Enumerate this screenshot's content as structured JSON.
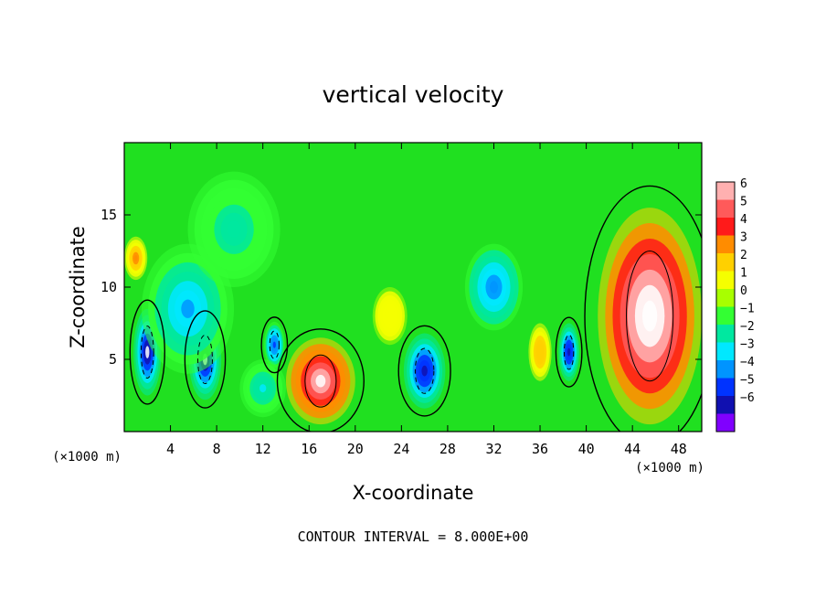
{
  "chart_data": {
    "type": "heatmap",
    "title": "vertical velocity",
    "xlabel": "X-coordinate",
    "ylabel": "Z-coordinate",
    "x_unit_left": "(×1000 m)",
    "x_unit_right": "(×1000 m)",
    "xlim": [
      0,
      50
    ],
    "ylim": [
      0,
      20
    ],
    "x_ticks": [
      4,
      8,
      12,
      16,
      20,
      24,
      28,
      32,
      36,
      40,
      44,
      48
    ],
    "y_ticks": [
      5,
      10,
      15
    ],
    "footnote": "CONTOUR INTERVAL = 8.000E+00",
    "colorbar": {
      "labels": [
        "6",
        "5",
        "4",
        "3",
        "2",
        "1",
        "0",
        "−1",
        "−2",
        "−3",
        "−4",
        "−5",
        "−6"
      ],
      "colors": [
        "#ffb0b0",
        "#ff5a5a",
        "#ff1a1a",
        "#ff8c00",
        "#ffd000",
        "#f5ff00",
        "#a8ff00",
        "#33ff33",
        "#00e8a0",
        "#00e8ff",
        "#0094ff",
        "#0033ff",
        "#1010b0",
        "#8000ff"
      ]
    },
    "background_color": "#20e020",
    "features": [
      {
        "name": "updraft",
        "x": 2.0,
        "z": 5.5,
        "rx": 1.2,
        "rz": 3.0,
        "w": -6.5
      },
      {
        "name": "updraft",
        "x": 7.0,
        "z": 5.0,
        "rx": 1.4,
        "rz": 2.8,
        "w": -6.5
      },
      {
        "name": "updraft",
        "x": 5.5,
        "z": 8.5,
        "rx": 4.0,
        "rz": 4.5,
        "w": -3.5
      },
      {
        "name": "updraft",
        "x": 13.0,
        "z": 6.0,
        "rx": 0.9,
        "rz": 1.6,
        "w": -5.0
      },
      {
        "name": "updraft",
        "x": 17.0,
        "z": 3.5,
        "rx": 3.0,
        "rz": 3.0,
        "w": 7.0
      },
      {
        "name": "updraft",
        "x": 26.0,
        "z": 4.2,
        "rx": 1.8,
        "rz": 2.6,
        "w": -6.0
      },
      {
        "name": "updraft",
        "x": 32.0,
        "z": 10.0,
        "rx": 2.5,
        "rz": 3.0,
        "w": -4.0
      },
      {
        "name": "updraft",
        "x": 38.5,
        "z": 5.5,
        "rx": 0.9,
        "rz": 2.0,
        "w": -6.0
      },
      {
        "name": "updraft",
        "x": 36.0,
        "z": 5.5,
        "rx": 1.0,
        "rz": 2.0,
        "w": 2.5
      },
      {
        "name": "updraft",
        "x": 45.5,
        "z": 8.0,
        "rx": 4.5,
        "rz": 7.5,
        "w": 8.0
      },
      {
        "name": "updraft",
        "x": 1.0,
        "z": 12.0,
        "rx": 1.0,
        "rz": 1.5,
        "w": 3.0
      },
      {
        "name": "updraft",
        "x": 23.0,
        "z": 8.0,
        "rx": 1.5,
        "rz": 2.0,
        "w": 1.5
      },
      {
        "name": "updraft",
        "x": 12.0,
        "z": 3.0,
        "rx": 2.0,
        "rz": 2.0,
        "w": -2.5
      },
      {
        "name": "updraft",
        "x": 9.5,
        "z": 14.0,
        "rx": 4.0,
        "rz": 4.0,
        "w": -2.0
      }
    ]
  }
}
